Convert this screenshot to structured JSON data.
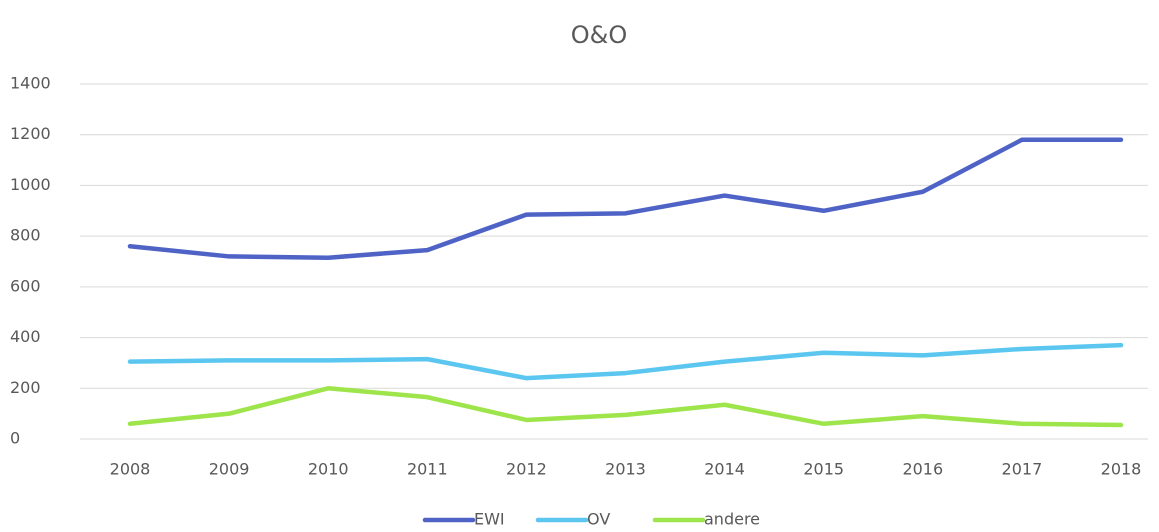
{
  "chart_data": {
    "type": "line",
    "title": "O&O",
    "categories": [
      "2008",
      "2009",
      "2010",
      "2011",
      "2012",
      "2013",
      "2014",
      "2015",
      "2016",
      "2017",
      "2018"
    ],
    "series": [
      {
        "name": "EWI",
        "color": "#4f63c6",
        "values": [
          760,
          720,
          715,
          745,
          885,
          890,
          960,
          900,
          975,
          1180,
          1180
        ]
      },
      {
        "name": "OV",
        "color": "#5bc7f0",
        "values": [
          305,
          310,
          310,
          315,
          240,
          260,
          305,
          340,
          330,
          355,
          370
        ]
      },
      {
        "name": "andere",
        "color": "#9ee44b",
        "values": [
          60,
          100,
          200,
          165,
          75,
          95,
          135,
          60,
          90,
          60,
          55
        ]
      }
    ],
    "ylim": [
      0,
      1400
    ],
    "yticks": [
      0,
      200,
      400,
      600,
      800,
      1000,
      1200,
      1400
    ],
    "grid": true,
    "legend": "bottom"
  }
}
